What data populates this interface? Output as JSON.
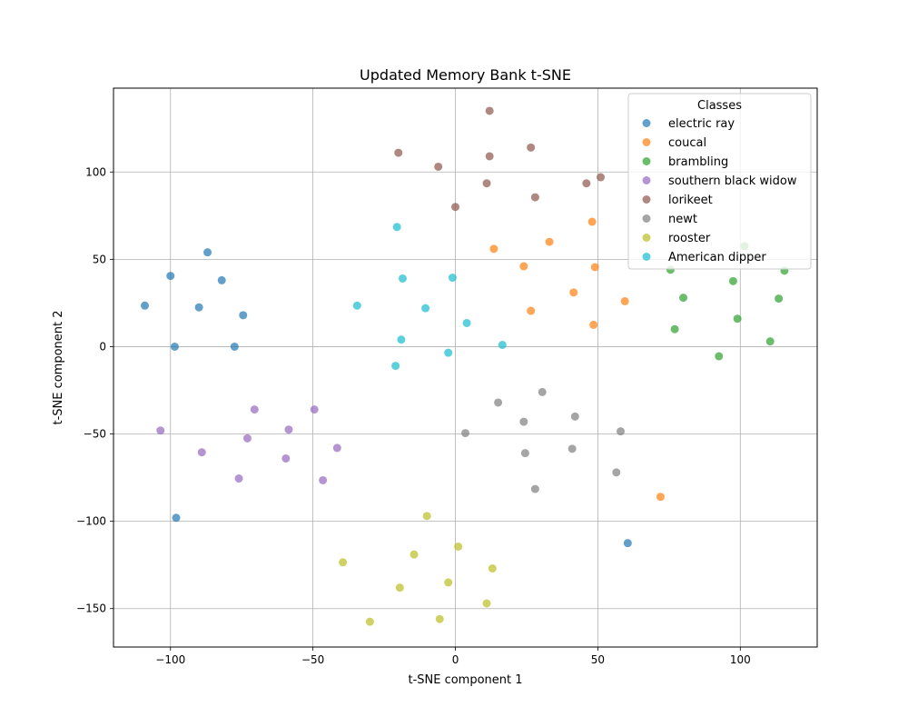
{
  "chart_data": {
    "type": "scatter",
    "title": "Updated Memory Bank t-SNE",
    "xlabel": "t-SNE component 1",
    "ylabel": "t-SNE component 2",
    "xlim": [
      -120,
      127
    ],
    "ylim": [
      -172,
      148
    ],
    "xticks": [
      -100,
      -50,
      0,
      50,
      100
    ],
    "xtick_labels": [
      "−100",
      "−50",
      "0",
      "50",
      "100"
    ],
    "yticks": [
      -150,
      -100,
      -50,
      0,
      50,
      100
    ],
    "ytick_labels": [
      "−150",
      "−100",
      "−50",
      "0",
      "50",
      "100"
    ],
    "grid": true,
    "legend": {
      "title": "Classes",
      "placement": "top-right"
    },
    "series": [
      {
        "name": "electric ray",
        "color": "#1f77b4",
        "points": [
          [
            -109,
            23.5
          ],
          [
            -100,
            40.5
          ],
          [
            -98.5,
            0
          ],
          [
            -98,
            -98
          ],
          [
            -90,
            22.5
          ],
          [
            -87,
            54
          ],
          [
            -82,
            38
          ],
          [
            -77.5,
            0
          ],
          [
            -74.5,
            18
          ],
          [
            60.5,
            -112.5
          ]
        ]
      },
      {
        "name": "coucal",
        "color": "#ff7f0e",
        "points": [
          [
            13.5,
            56
          ],
          [
            24,
            46
          ],
          [
            26.5,
            20.5
          ],
          [
            33,
            60
          ],
          [
            41.5,
            31
          ],
          [
            48,
            71.5
          ],
          [
            48.5,
            12.5
          ],
          [
            49,
            45.5
          ],
          [
            59.5,
            26
          ],
          [
            72,
            -86
          ]
        ]
      },
      {
        "name": "brambling",
        "color": "#2ca02c",
        "points": [
          [
            75.5,
            44
          ],
          [
            77,
            10
          ],
          [
            80,
            28
          ],
          [
            92.5,
            -5.5
          ],
          [
            97.5,
            37.5
          ],
          [
            99,
            16
          ],
          [
            101.5,
            57.5
          ],
          [
            110.5,
            3
          ],
          [
            113.5,
            27.5
          ],
          [
            115.5,
            43.5
          ]
        ]
      },
      {
        "name": "southern black widow",
        "color": "#9467bd",
        "points": [
          [
            -103.5,
            -48
          ],
          [
            -89,
            -60.5
          ],
          [
            -76,
            -75.5
          ],
          [
            -73,
            -52.5
          ],
          [
            -70.5,
            -36
          ],
          [
            -59.5,
            -64
          ],
          [
            -58.5,
            -47.5
          ],
          [
            -49.5,
            -36
          ],
          [
            -41.5,
            -58
          ],
          [
            -46.5,
            -76.5
          ]
        ]
      },
      {
        "name": "lorikeet",
        "color": "#8c564b",
        "points": [
          [
            -20,
            111
          ],
          [
            -6,
            103
          ],
          [
            0,
            80
          ],
          [
            11,
            93.5
          ],
          [
            12,
            109
          ],
          [
            12,
            135
          ],
          [
            26.5,
            114
          ],
          [
            28,
            85.5
          ],
          [
            46,
            93.5
          ],
          [
            51,
            97
          ]
        ]
      },
      {
        "name": "newt",
        "color": "#7f7f7f",
        "points": [
          [
            3.5,
            -49.5
          ],
          [
            15,
            -32
          ],
          [
            24,
            -43
          ],
          [
            24.5,
            -61
          ],
          [
            28,
            -81.5
          ],
          [
            30.5,
            -26
          ],
          [
            41,
            -58.5
          ],
          [
            42,
            -40
          ],
          [
            56.5,
            -72
          ],
          [
            58,
            -48.5
          ]
        ]
      },
      {
        "name": "rooster",
        "color": "#bcbd22",
        "points": [
          [
            -30,
            -157.5
          ],
          [
            -39.5,
            -123.5
          ],
          [
            -19.5,
            -138
          ],
          [
            -14.5,
            -119
          ],
          [
            -10,
            -97
          ],
          [
            -5.5,
            -156
          ],
          [
            -2.5,
            -135
          ],
          [
            1,
            -114.5
          ],
          [
            11,
            -147
          ],
          [
            13,
            -127
          ]
        ]
      },
      {
        "name": "American dipper",
        "color": "#17becf",
        "points": [
          [
            -34.5,
            23.5
          ],
          [
            -21,
            -11
          ],
          [
            -20.5,
            68.5
          ],
          [
            -19,
            4
          ],
          [
            -18.5,
            39
          ],
          [
            -10.5,
            22
          ],
          [
            -2.5,
            -3.5
          ],
          [
            -1,
            39.5
          ],
          [
            4,
            13.5
          ],
          [
            16.5,
            1
          ]
        ]
      }
    ]
  }
}
